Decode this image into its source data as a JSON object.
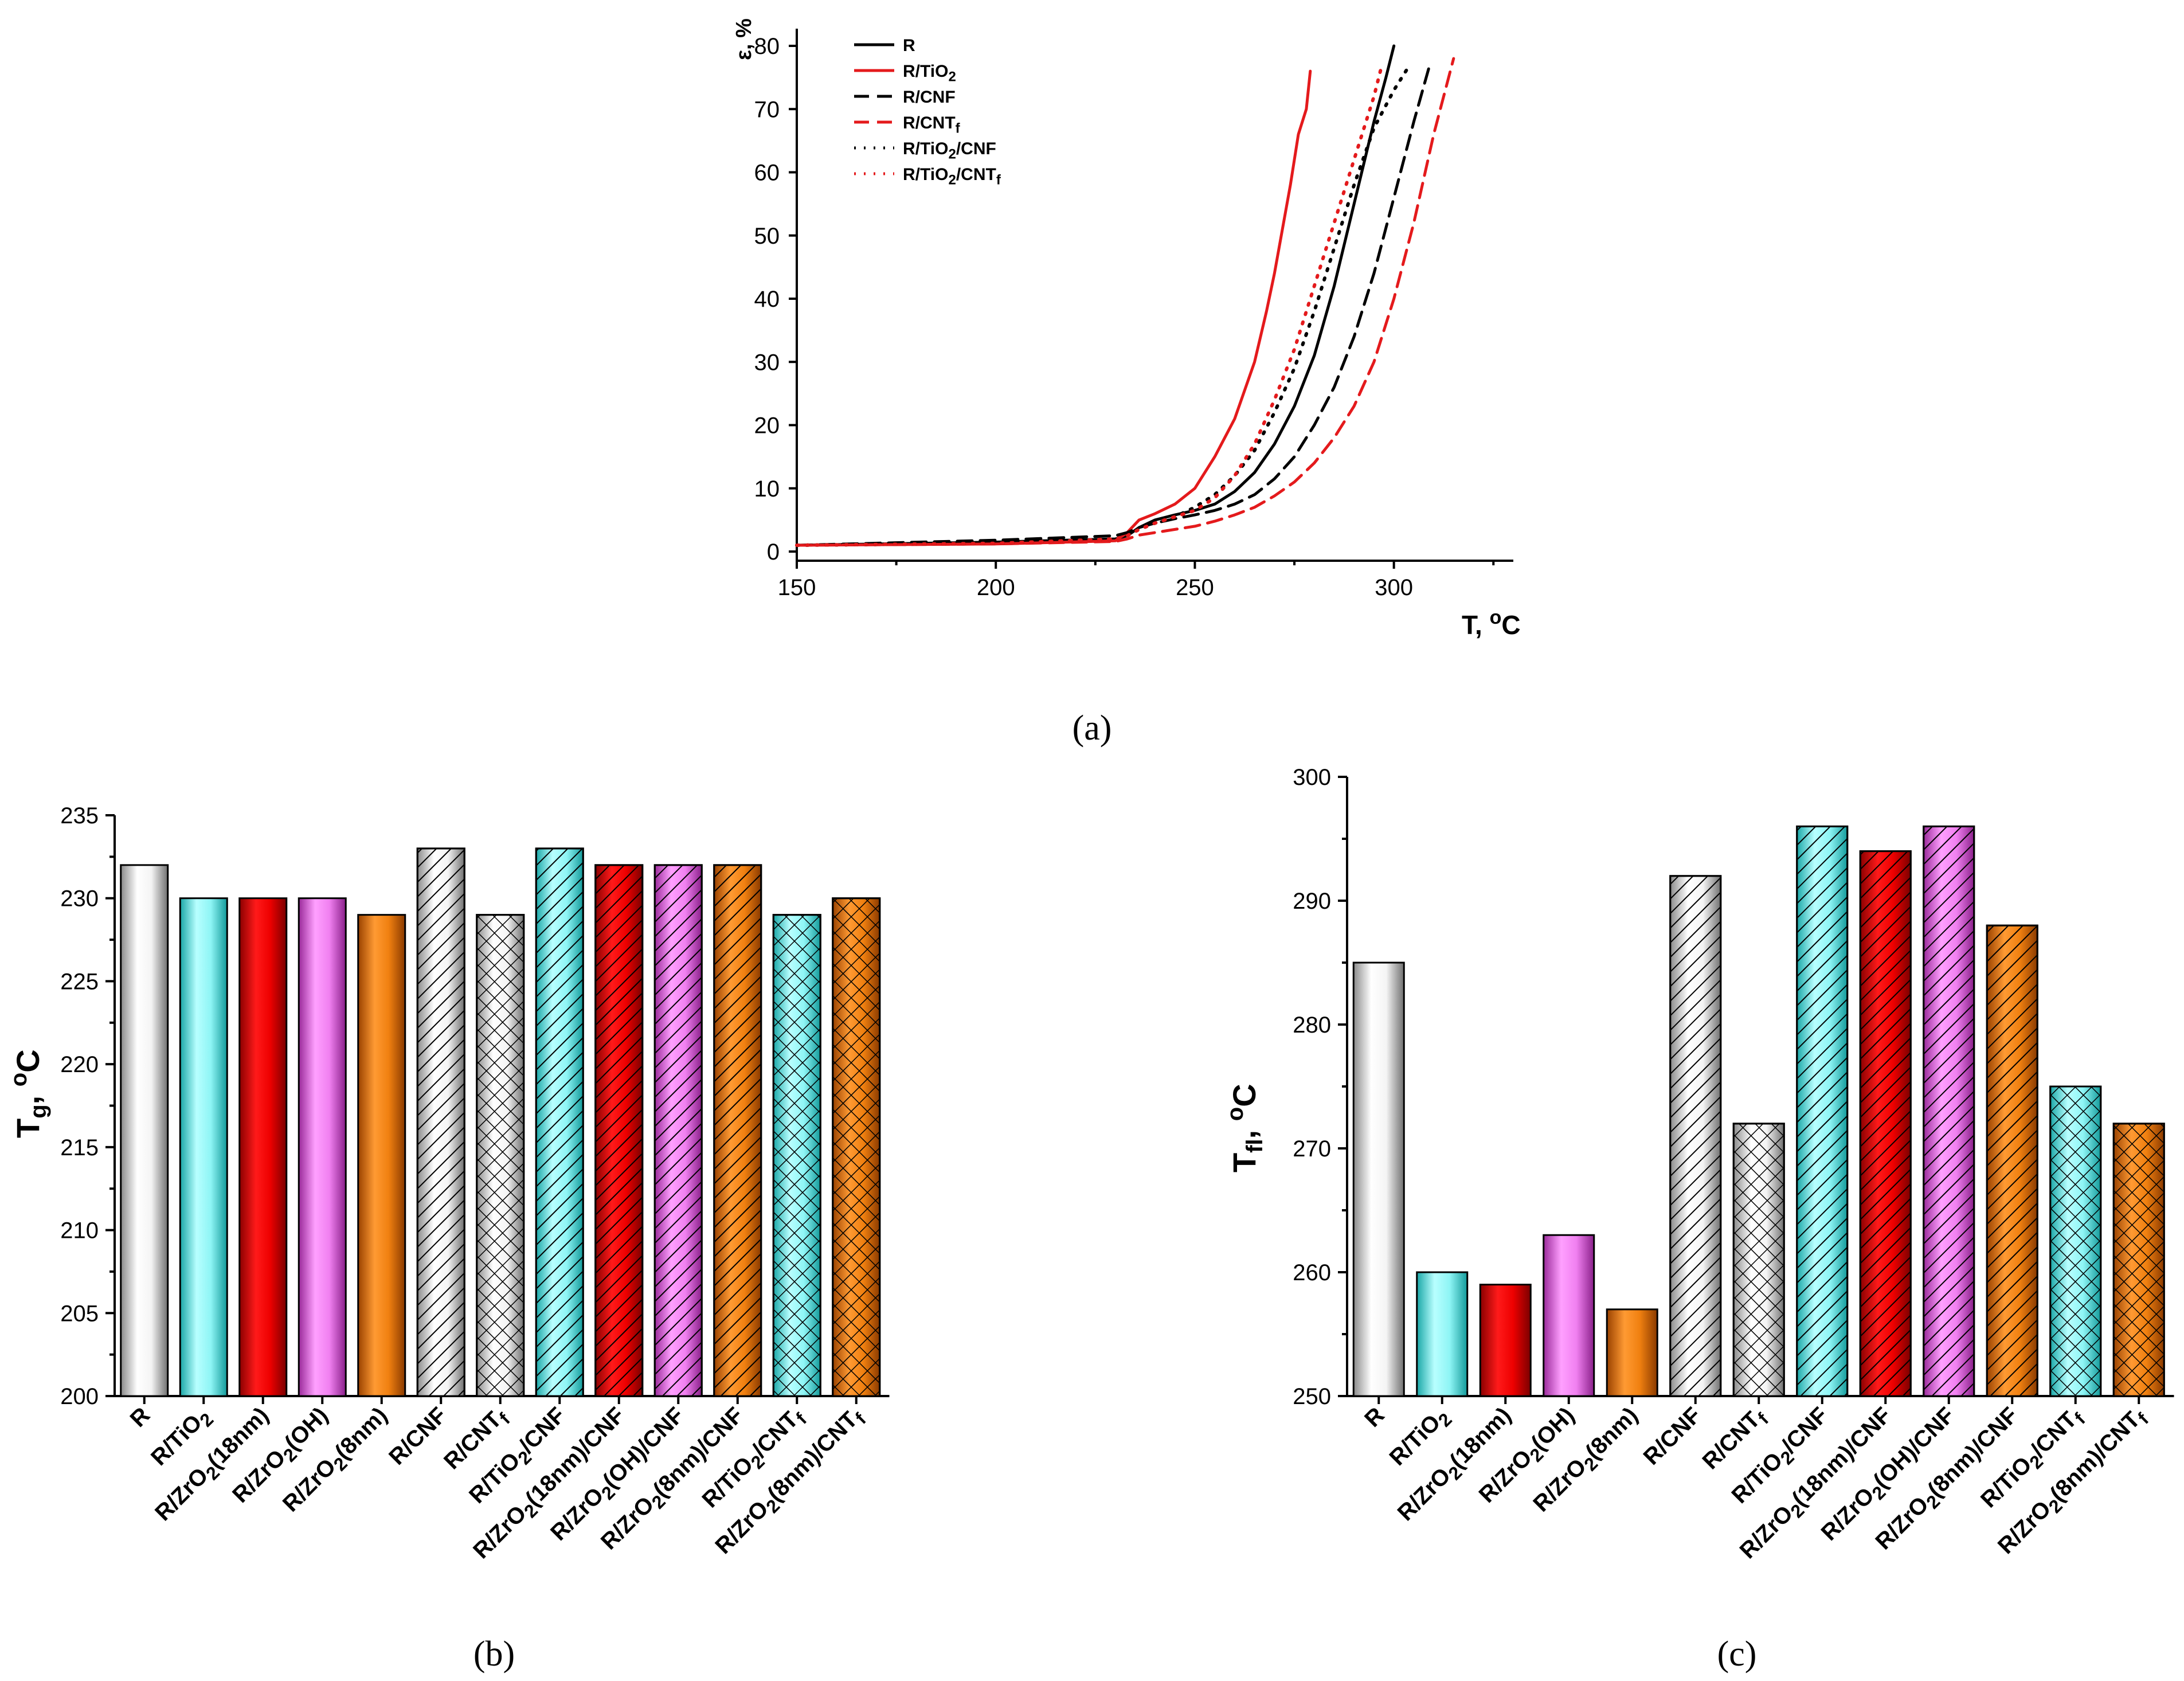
{
  "chart_data": [
    {
      "id": "a",
      "type": "line",
      "panel_label": "(a)",
      "xlabel": "T, °C",
      "ylabel": "ε, %",
      "xlim": [
        150,
        330
      ],
      "ylim": [
        0,
        80
      ],
      "xticks": [
        150,
        200,
        250,
        300
      ],
      "yticks": [
        0,
        10,
        20,
        30,
        40,
        50,
        60,
        70,
        80
      ],
      "legend_position": "top-left",
      "series": [
        {
          "name": "R",
          "color": "#000000",
          "style": "solid",
          "x": [
            150,
            200,
            230,
            233,
            236,
            240,
            245,
            250,
            255,
            260,
            265,
            270,
            275,
            280,
            285,
            290,
            295,
            298,
            300
          ],
          "y": [
            1,
            1.5,
            2,
            2.5,
            3.8,
            5,
            5.8,
            6.5,
            7.5,
            9.5,
            12.5,
            17,
            23,
            31,
            42,
            55,
            68,
            75,
            80
          ]
        },
        {
          "name": "R/TiO2",
          "color": "#e41a1c",
          "style": "solid",
          "x": [
            150,
            200,
            230,
            233,
            236,
            240,
            245,
            250,
            255,
            260,
            265,
            268,
            270,
            272,
            274,
            276,
            278,
            279
          ],
          "y": [
            1,
            1.2,
            1.7,
            3,
            5,
            6,
            7.5,
            10,
            15,
            21,
            30,
            38,
            44,
            51,
            58,
            66,
            70,
            76
          ]
        },
        {
          "name": "R/CNF",
          "color": "#000000",
          "style": "dashed",
          "x": [
            150,
            200,
            230,
            233,
            236,
            240,
            245,
            250,
            255,
            260,
            265,
            270,
            275,
            280,
            285,
            290,
            295,
            300,
            305,
            309
          ],
          "y": [
            1,
            1.8,
            2.5,
            3,
            3.8,
            4.5,
            5.2,
            5.8,
            6.5,
            7.5,
            9,
            11.5,
            15,
            20,
            26,
            34,
            44,
            56,
            68,
            77
          ]
        },
        {
          "name": "R/CNTf",
          "color": "#e41a1c",
          "style": "dashed",
          "x": [
            150,
            200,
            230,
            233,
            236,
            240,
            245,
            250,
            255,
            260,
            265,
            270,
            275,
            280,
            285,
            290,
            295,
            300,
            305,
            310,
            315
          ],
          "y": [
            1,
            1.2,
            1.6,
            2,
            2.6,
            3,
            3.5,
            4,
            4.8,
            5.8,
            7,
            8.8,
            11,
            14,
            18,
            23,
            30,
            40,
            52,
            66,
            78
          ]
        },
        {
          "name": "R/TiO2/CNF",
          "color": "#000000",
          "style": "dotted",
          "x": [
            150,
            200,
            230,
            233,
            236,
            240,
            245,
            250,
            255,
            260,
            265,
            270,
            275,
            280,
            285,
            290,
            295,
            300,
            304
          ],
          "y": [
            1,
            1.3,
            2,
            2.5,
            3.5,
            4.5,
            5.5,
            7,
            9,
            12,
            16,
            22,
            29,
            38,
            48,
            58,
            67,
            73,
            77
          ]
        },
        {
          "name": "R/TiO2/CNTf",
          "color": "#e41a1c",
          "style": "dotted",
          "x": [
            150,
            200,
            230,
            233,
            236,
            240,
            245,
            250,
            255,
            260,
            265,
            270,
            275,
            280,
            285,
            290,
            295,
            297
          ],
          "y": [
            1,
            1.3,
            2,
            2.5,
            3.5,
            4.5,
            5.5,
            6.5,
            8.5,
            12,
            17,
            24,
            32,
            42,
            52,
            62,
            72,
            77
          ]
        }
      ]
    },
    {
      "id": "b",
      "type": "bar",
      "panel_label": "(b)",
      "ylabel": "Tg, °C",
      "ylim": [
        200,
        235
      ],
      "yticks": [
        200,
        205,
        210,
        215,
        220,
        225,
        230,
        235
      ],
      "categories": [
        "R",
        "R/TiO2",
        "R/ZrO2(18nm)",
        "R/ZrO2(OH)",
        "R/ZrO2(8nm)",
        "R/CNF",
        "R/CNTf",
        "R/TiO2/CNF",
        "R/ZrO2(18nm)/CNF",
        "R/ZrO2(OH)/CNF",
        "R/ZrO2(8nm)/CNF",
        "R/TiO2/CNTf",
        "R/ZrO2(8nm)/CNTf"
      ],
      "values": [
        232,
        230,
        230,
        230,
        229,
        233,
        229,
        233,
        232,
        232,
        232,
        229,
        230
      ],
      "colors": [
        "#c8c8c8",
        "#33dddd",
        "#e00000",
        "#dd44dd",
        "#e86e00",
        "#c8c8c8",
        "#c8c8c8",
        "#33dddd",
        "#e00000",
        "#dd44dd",
        "#e86e00",
        "#33dddd",
        "#e86e00"
      ],
      "patterns": [
        "none",
        "none",
        "none",
        "none",
        "none",
        "diag",
        "cross",
        "diag",
        "diag",
        "diag",
        "diag",
        "cross",
        "cross"
      ]
    },
    {
      "id": "c",
      "type": "bar",
      "panel_label": "(c)",
      "ylabel": "Tfl, °C",
      "ylim": [
        250,
        300
      ],
      "yticks": [
        250,
        260,
        270,
        280,
        290,
        300
      ],
      "categories": [
        "R",
        "R/TiO2",
        "R/ZrO2(18nm)",
        "R/ZrO2(OH)",
        "R/ZrO2(8nm)",
        "R/CNF",
        "R/CNTf",
        "R/TiO2/CNF",
        "R/ZrO2(18nm)/CNF",
        "R/ZrO2(OH)/CNF",
        "R/ZrO2(8nm)/CNF",
        "R/TiO2/CNTf",
        "R/ZrO2(8nm)/CNTf"
      ],
      "values": [
        285,
        260,
        259,
        263,
        257,
        292,
        272,
        296,
        294,
        296,
        288,
        275,
        272
      ],
      "colors": [
        "#c8c8c8",
        "#33dddd",
        "#e00000",
        "#dd44dd",
        "#e86e00",
        "#c8c8c8",
        "#c8c8c8",
        "#33dddd",
        "#e00000",
        "#dd44dd",
        "#e86e00",
        "#33dddd",
        "#e86e00"
      ],
      "patterns": [
        "none",
        "none",
        "none",
        "none",
        "none",
        "diag",
        "cross",
        "diag",
        "diag",
        "diag",
        "diag",
        "cross",
        "cross"
      ]
    }
  ]
}
